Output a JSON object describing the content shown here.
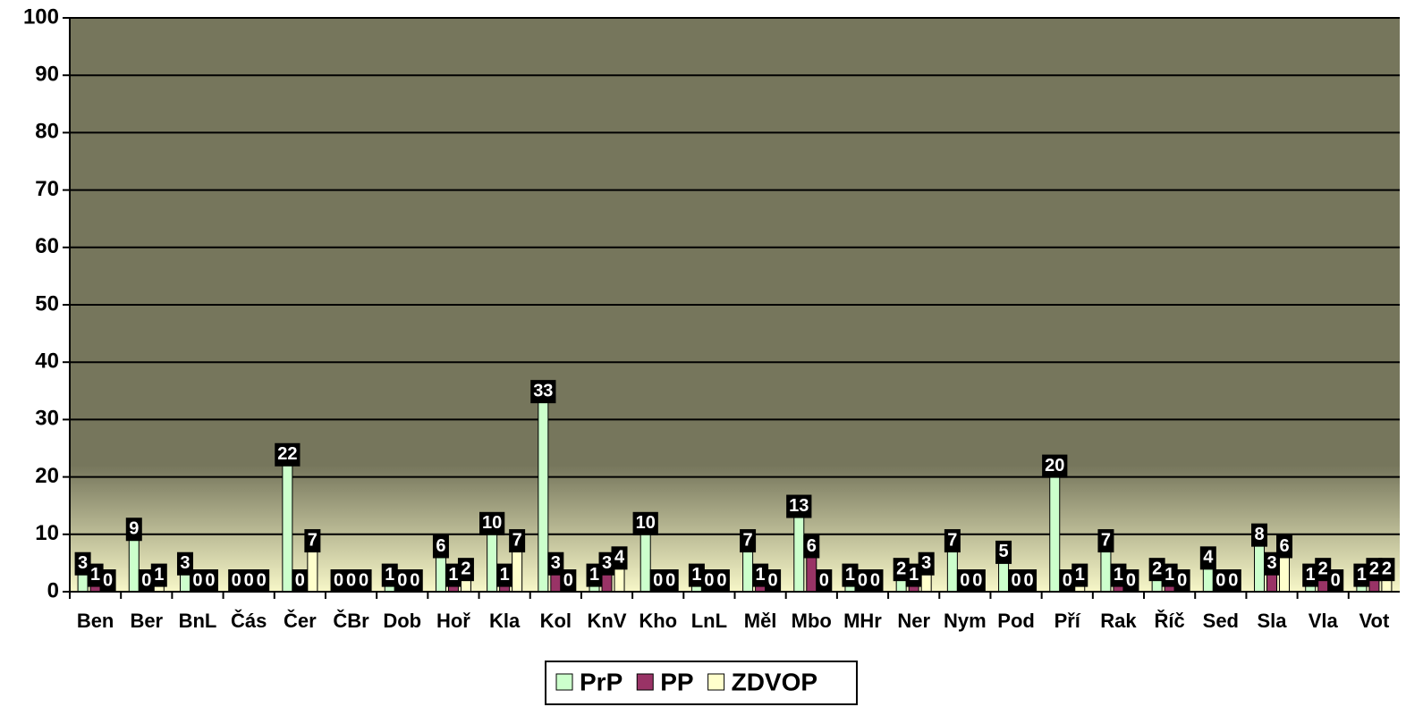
{
  "chart_data": {
    "type": "bar",
    "categories": [
      "Ben",
      "Ber",
      "BnL",
      "Čás",
      "Čer",
      "ČBr",
      "Dob",
      "Hoř",
      "Kla",
      "Kol",
      "KnV",
      "Kho",
      "LnL",
      "Měl",
      "Mbo",
      "MHr",
      "Ner",
      "Nym",
      "Pod",
      "Pří",
      "Rak",
      "Říč",
      "Sed",
      "Sla",
      "Vla",
      "Vot"
    ],
    "series": [
      {
        "name": "PrP",
        "color": "#ccffcc",
        "values": [
          3,
          9,
          3,
          0,
          22,
          0,
          1,
          6,
          10,
          33,
          1,
          10,
          1,
          7,
          13,
          1,
          2,
          7,
          5,
          20,
          7,
          2,
          4,
          8,
          1,
          1
        ]
      },
      {
        "name": "PP",
        "color": "#993366",
        "values": [
          1,
          0,
          0,
          0,
          0,
          0,
          0,
          1,
          1,
          3,
          3,
          0,
          0,
          1,
          6,
          0,
          1,
          0,
          0,
          0,
          1,
          1,
          0,
          3,
          2,
          2
        ]
      },
      {
        "name": "ZDVOP",
        "color": "#ffffcc",
        "values": [
          0,
          1,
          0,
          0,
          7,
          0,
          0,
          2,
          7,
          0,
          4,
          0,
          0,
          0,
          0,
          0,
          3,
          0,
          0,
          1,
          0,
          0,
          0,
          6,
          0,
          2
        ]
      }
    ],
    "ylim": [
      0,
      100
    ],
    "yticks": [
      0,
      10,
      20,
      30,
      40,
      50,
      60,
      70,
      80,
      90,
      100
    ],
    "grid": true,
    "legend": "bottom"
  }
}
